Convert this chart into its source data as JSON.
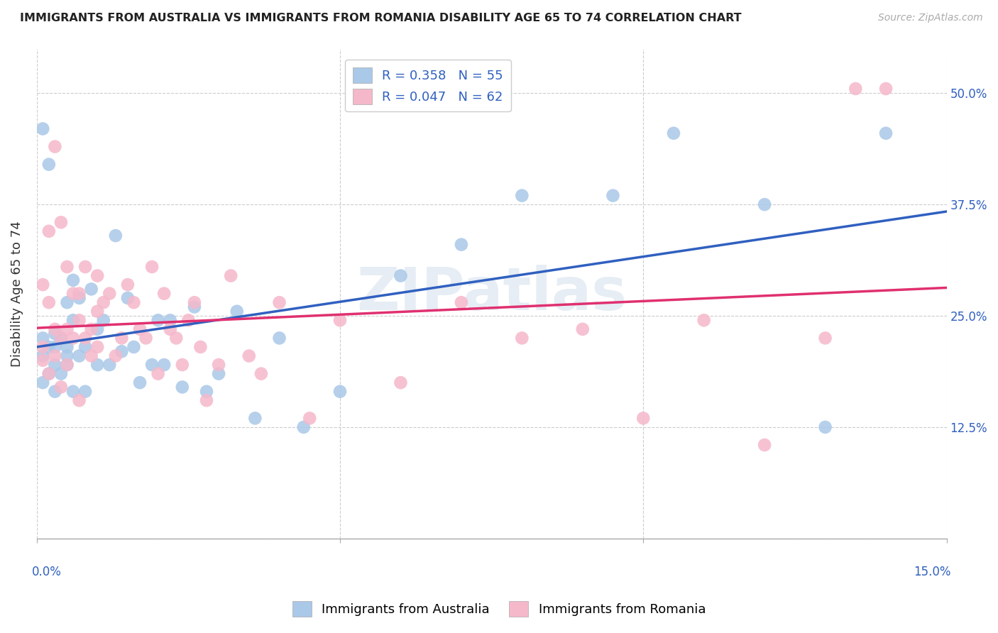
{
  "title": "IMMIGRANTS FROM AUSTRALIA VS IMMIGRANTS FROM ROMANIA DISABILITY AGE 65 TO 74 CORRELATION CHART",
  "source": "Source: ZipAtlas.com",
  "ylabel": "Disability Age 65 to 74",
  "xlim": [
    0.0,
    0.15
  ],
  "ylim": [
    0.0,
    0.55
  ],
  "ytick_positions": [
    0.0,
    0.125,
    0.25,
    0.375,
    0.5
  ],
  "ytick_labels": [
    "",
    "12.5%",
    "25.0%",
    "37.5%",
    "50.0%"
  ],
  "legend_blue_r": "0.358",
  "legend_blue_n": "55",
  "legend_pink_r": "0.047",
  "legend_pink_n": "62",
  "series_label_blue": "Immigrants from Australia",
  "series_label_pink": "Immigrants from Romania",
  "blue_color": "#aac8e8",
  "pink_color": "#f5b8ca",
  "blue_line_color": "#3060c0",
  "pink_line_color": "#e03070",
  "watermark": "ZIPatlas",
  "background_color": "#ffffff",
  "grid_color": "#cccccc",
  "blue_x": [
    0.001,
    0.001,
    0.002,
    0.002,
    0.003,
    0.003,
    0.003,
    0.004,
    0.004,
    0.005,
    0.005,
    0.005,
    0.006,
    0.006,
    0.007,
    0.007,
    0.008,
    0.008,
    0.009,
    0.01,
    0.01,
    0.011,
    0.012,
    0.013,
    0.014,
    0.015,
    0.016,
    0.017,
    0.019,
    0.02,
    0.021,
    0.022,
    0.024,
    0.026,
    0.028,
    0.03,
    0.033,
    0.036,
    0.04,
    0.044,
    0.05,
    0.06,
    0.07,
    0.08,
    0.095,
    0.105,
    0.12,
    0.13,
    0.14,
    0.005,
    0.003,
    0.002,
    0.001,
    0.001,
    0.006
  ],
  "blue_y": [
    0.205,
    0.225,
    0.185,
    0.215,
    0.195,
    0.215,
    0.23,
    0.185,
    0.225,
    0.195,
    0.215,
    0.265,
    0.245,
    0.29,
    0.205,
    0.27,
    0.165,
    0.215,
    0.28,
    0.235,
    0.195,
    0.245,
    0.195,
    0.34,
    0.21,
    0.27,
    0.215,
    0.175,
    0.195,
    0.245,
    0.195,
    0.245,
    0.17,
    0.26,
    0.165,
    0.185,
    0.255,
    0.135,
    0.225,
    0.125,
    0.165,
    0.295,
    0.33,
    0.385,
    0.385,
    0.455,
    0.375,
    0.125,
    0.455,
    0.205,
    0.165,
    0.42,
    0.46,
    0.175,
    0.165
  ],
  "pink_x": [
    0.001,
    0.001,
    0.002,
    0.002,
    0.003,
    0.003,
    0.004,
    0.004,
    0.005,
    0.005,
    0.005,
    0.006,
    0.006,
    0.007,
    0.007,
    0.008,
    0.008,
    0.009,
    0.009,
    0.01,
    0.01,
    0.011,
    0.012,
    0.013,
    0.014,
    0.015,
    0.016,
    0.017,
    0.018,
    0.019,
    0.02,
    0.021,
    0.022,
    0.023,
    0.024,
    0.025,
    0.026,
    0.027,
    0.028,
    0.03,
    0.032,
    0.035,
    0.037,
    0.04,
    0.045,
    0.05,
    0.06,
    0.07,
    0.08,
    0.09,
    0.1,
    0.11,
    0.12,
    0.13,
    0.135,
    0.14,
    0.002,
    0.003,
    0.001,
    0.004,
    0.007,
    0.01
  ],
  "pink_y": [
    0.2,
    0.285,
    0.185,
    0.265,
    0.205,
    0.235,
    0.225,
    0.355,
    0.195,
    0.235,
    0.305,
    0.225,
    0.275,
    0.245,
    0.275,
    0.225,
    0.305,
    0.205,
    0.235,
    0.255,
    0.295,
    0.265,
    0.275,
    0.205,
    0.225,
    0.285,
    0.265,
    0.235,
    0.225,
    0.305,
    0.185,
    0.275,
    0.235,
    0.225,
    0.195,
    0.245,
    0.265,
    0.215,
    0.155,
    0.195,
    0.295,
    0.205,
    0.185,
    0.265,
    0.135,
    0.245,
    0.175,
    0.265,
    0.225,
    0.235,
    0.135,
    0.245,
    0.105,
    0.225,
    0.505,
    0.505,
    0.345,
    0.44,
    0.215,
    0.17,
    0.155,
    0.215
  ]
}
